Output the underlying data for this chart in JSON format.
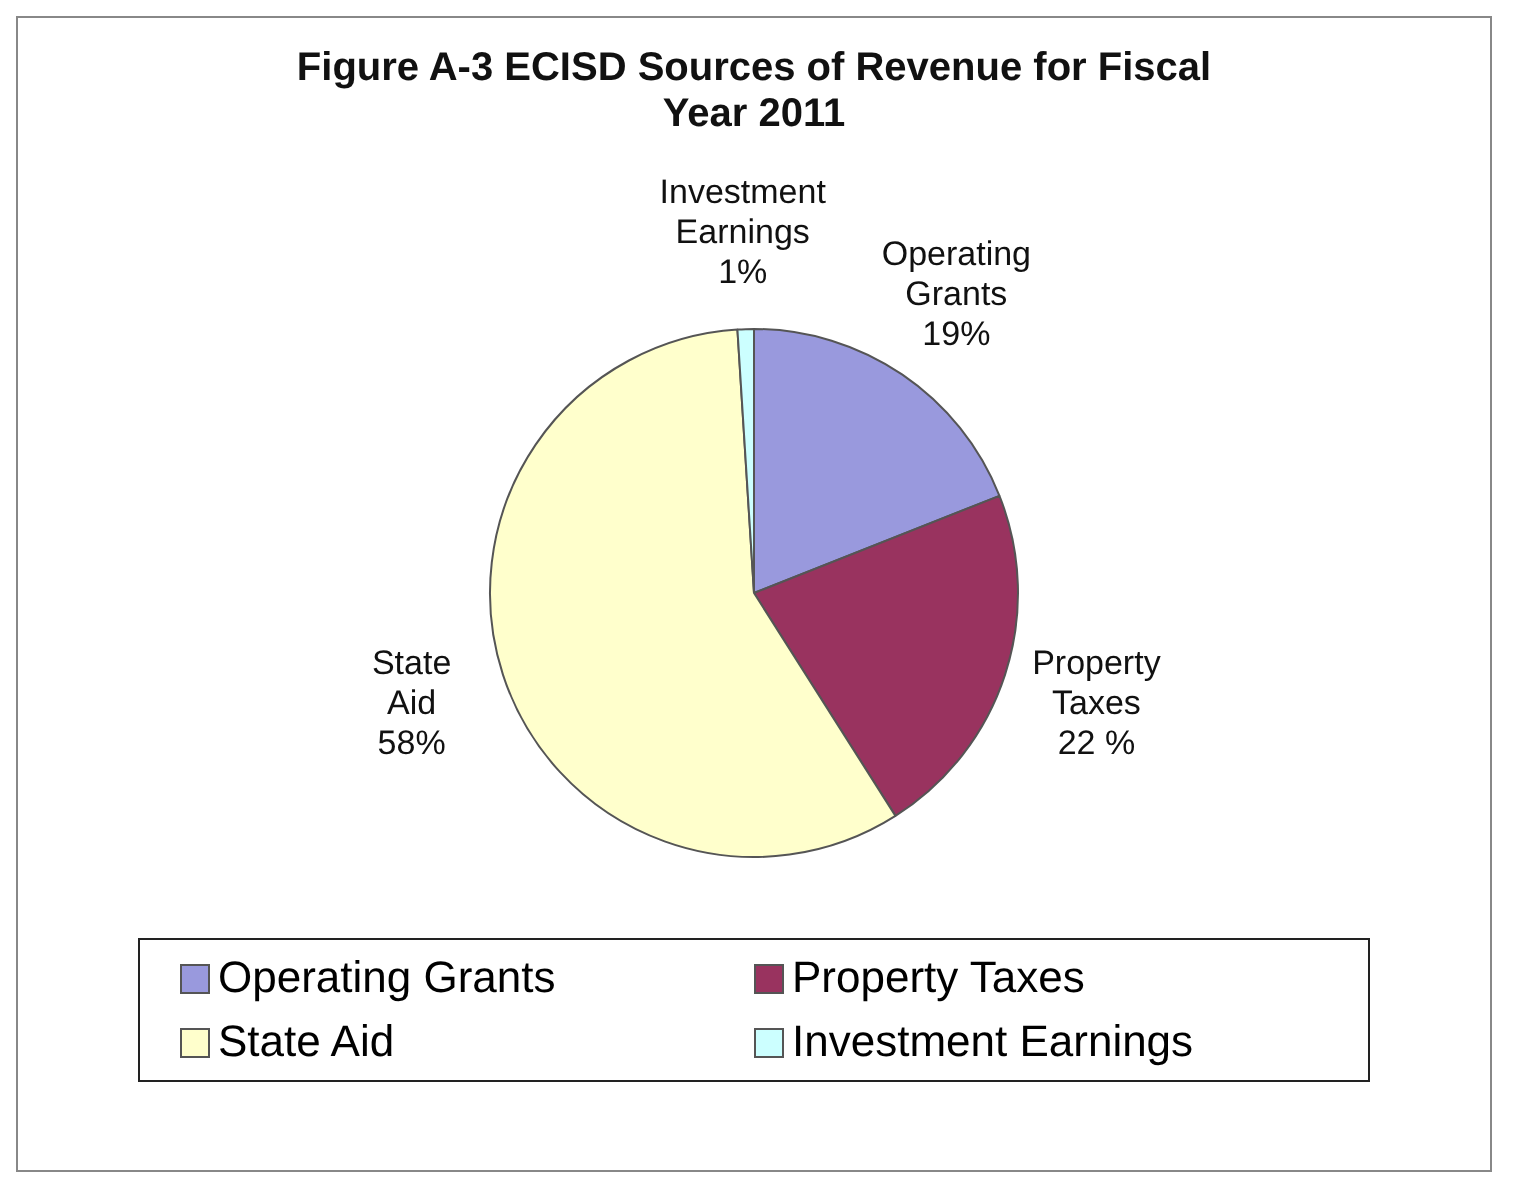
{
  "chart_data": {
    "type": "pie",
    "title": "Figure A-3 ECISD Sources of Revenue for Fiscal Year 2011",
    "categories": [
      "Operating Grants",
      "Property Taxes",
      "State Aid",
      "Investment Earnings"
    ],
    "values": [
      19,
      22,
      58,
      1
    ],
    "value_labels": [
      "19%",
      "22 %",
      "58%",
      "1%"
    ],
    "colors": [
      "#9999dd",
      "#99335f",
      "#ffffcc",
      "#ccffff"
    ],
    "legend": "bottom"
  }
}
